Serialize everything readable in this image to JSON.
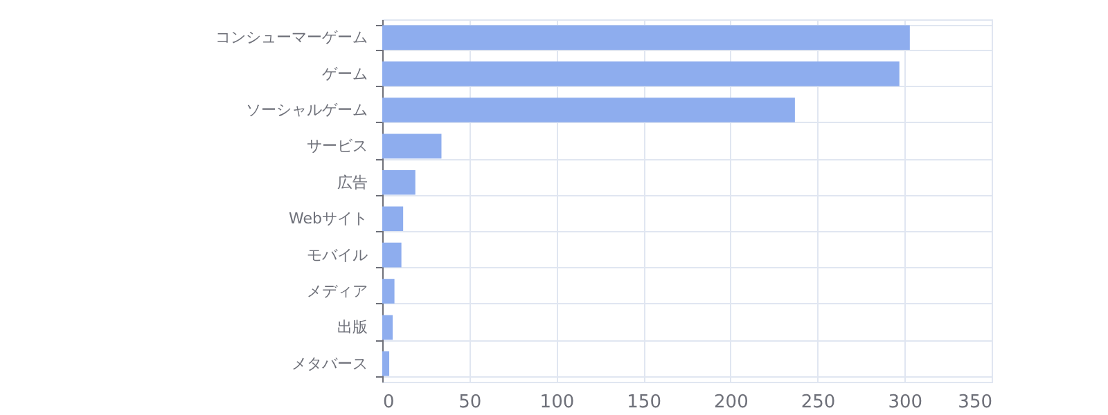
{
  "chart_data": {
    "type": "bar",
    "orientation": "horizontal",
    "categories": [
      "コンシューマーゲーム",
      "ゲーム",
      "ソーシャルゲーム",
      "サービス",
      "広告",
      "Webサイト",
      "モバイル",
      "メディア",
      "出版",
      "メタバース"
    ],
    "values": [
      303,
      297,
      237,
      34,
      19,
      12,
      11,
      7,
      6,
      4
    ],
    "color": "#8eadee",
    "xlim": [
      0,
      350
    ],
    "xticks": [
      0,
      50,
      100,
      150,
      200,
      250,
      300,
      350
    ],
    "grid": true
  }
}
